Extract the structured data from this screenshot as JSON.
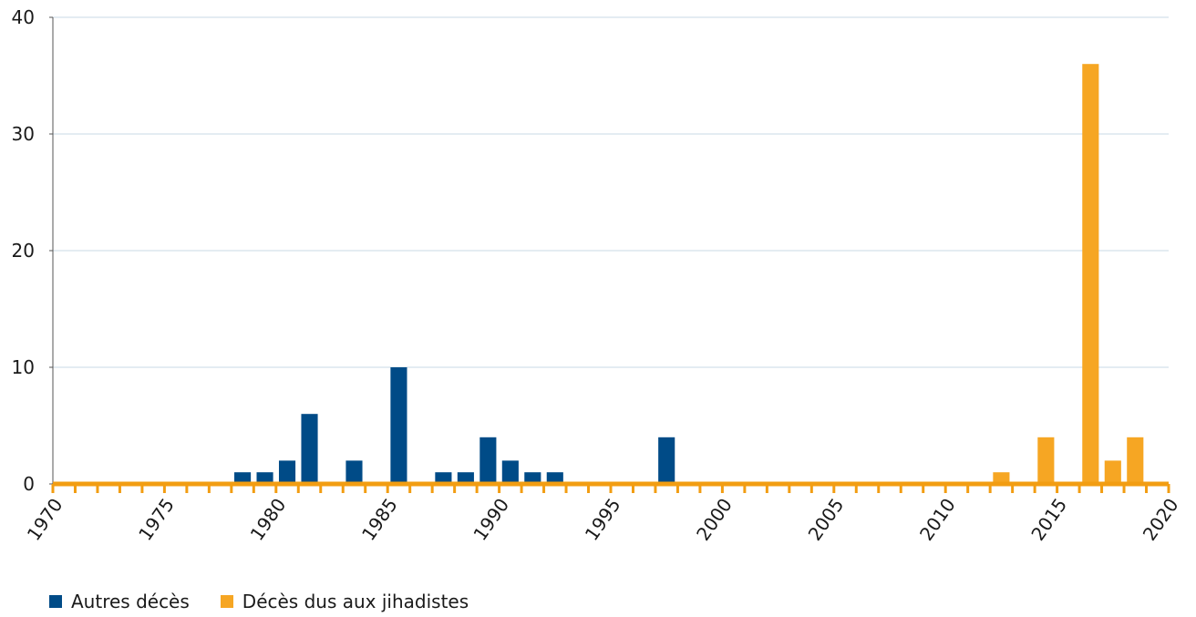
{
  "chart_data": {
    "type": "bar",
    "title": "",
    "xlabel": "",
    "ylabel": "",
    "ylim": [
      0,
      40
    ],
    "yticks": [
      0,
      10,
      20,
      30,
      40
    ],
    "xlim": [
      1970,
      2020
    ],
    "xticks": [
      1970,
      1975,
      1980,
      1985,
      1990,
      1995,
      2000,
      2005,
      2010,
      2015,
      2020
    ],
    "grid": true,
    "legend_position": "bottom-left",
    "series": [
      {
        "name": "Autres décès",
        "color": "#004b87",
        "points": [
          {
            "x": 1978,
            "y": 1
          },
          {
            "x": 1979,
            "y": 1
          },
          {
            "x": 1980,
            "y": 2
          },
          {
            "x": 1981,
            "y": 6
          },
          {
            "x": 1983,
            "y": 2
          },
          {
            "x": 1985,
            "y": 10
          },
          {
            "x": 1987,
            "y": 1
          },
          {
            "x": 1988,
            "y": 1
          },
          {
            "x": 1989,
            "y": 4
          },
          {
            "x": 1990,
            "y": 2
          },
          {
            "x": 1991,
            "y": 1
          },
          {
            "x": 1992,
            "y": 1
          },
          {
            "x": 1997,
            "y": 4
          }
        ]
      },
      {
        "name": "Décès dus aux jihadistes",
        "color": "#f6a623",
        "points": [
          {
            "x": 2012,
            "y": 1
          },
          {
            "x": 2014,
            "y": 4
          },
          {
            "x": 2016,
            "y": 36
          },
          {
            "x": 2017,
            "y": 2
          },
          {
            "x": 2018,
            "y": 4
          }
        ]
      }
    ]
  }
}
